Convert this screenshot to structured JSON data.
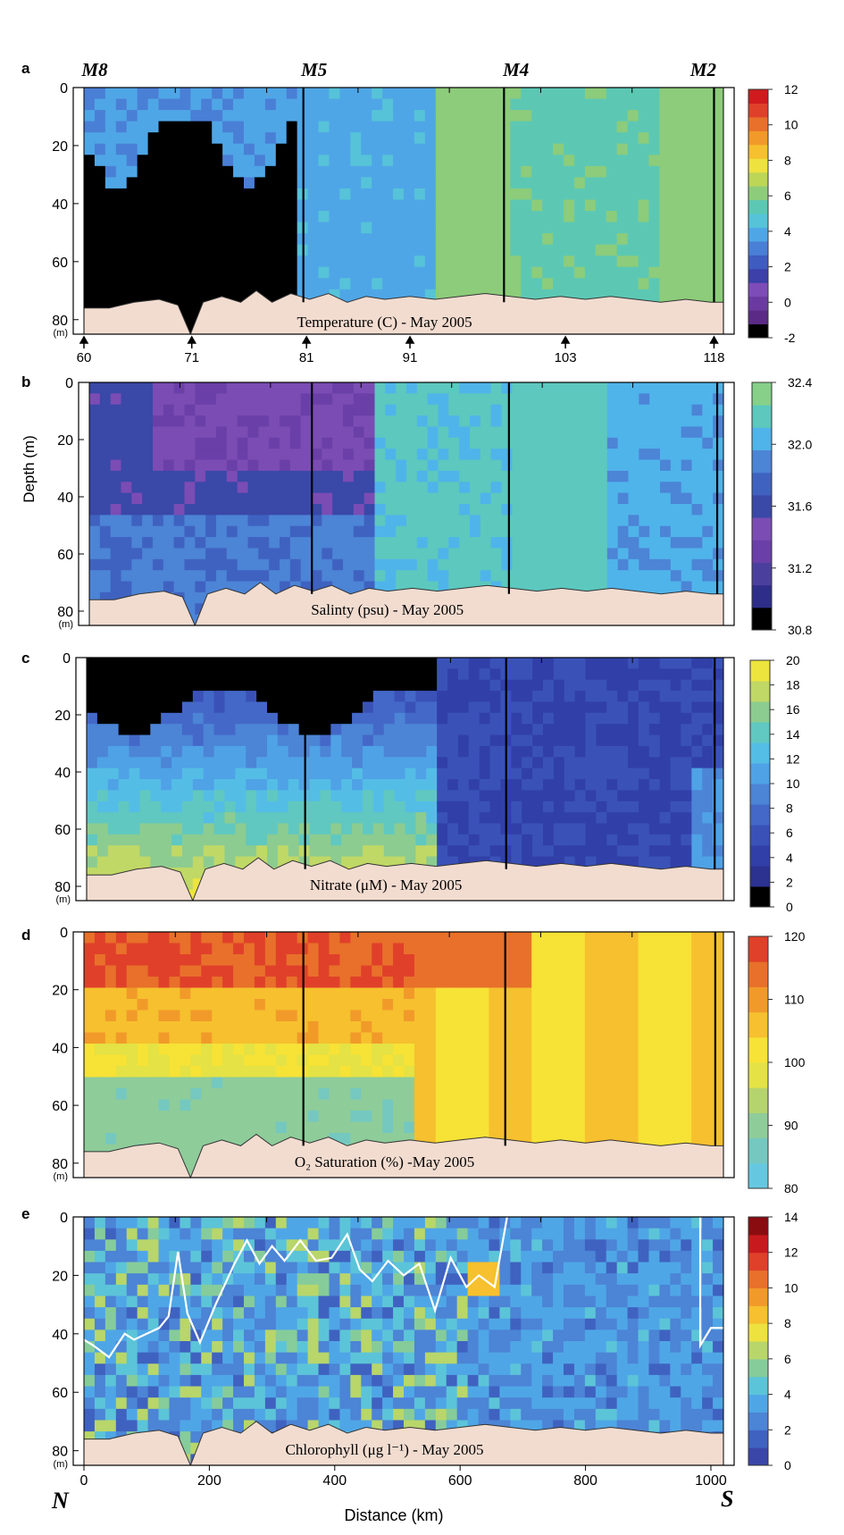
{
  "figure": {
    "y_axis_title": "Depth (m)",
    "x_axis_title": "Distance (km)",
    "north_label": "N",
    "south_label": "S",
    "depth_unit": "(m)",
    "station_labels": [
      "M8",
      "M5",
      "M4",
      "M2"
    ],
    "station_numbers": [
      "60",
      "71",
      "81",
      "91",
      "103",
      "118"
    ]
  },
  "chart_data": [
    {
      "type": "heatmap",
      "panel": "a",
      "caption": "Temperature (C) - May 2005",
      "depth_ticks": [
        "0",
        "20",
        "40",
        "60",
        "80"
      ],
      "ylim": [
        85,
        0
      ],
      "colorbar": {
        "ticks": [
          "12",
          "10",
          "8",
          "6",
          "4",
          "2",
          "0",
          "-2"
        ],
        "values": [
          12,
          10,
          8,
          6,
          4,
          2,
          0,
          -2
        ],
        "colors": [
          "#000000",
          "#5a2a86",
          "#6a3aa0",
          "#7d4cb8",
          "#3c40a8",
          "#3f5cc0",
          "#4a7fd6",
          "#4fa6e6",
          "#56c3d8",
          "#5cc8b4",
          "#8ccc7a",
          "#bdd656",
          "#eee23e",
          "#f6c02e",
          "#f19a2a",
          "#e8702a",
          "#e0402a",
          "#d01a1e"
        ]
      }
    },
    {
      "type": "heatmap",
      "panel": "b",
      "caption": "Salinty (psu) - May 2005",
      "depth_ticks": [
        "0",
        "20",
        "40",
        "60",
        "80"
      ],
      "ylim": [
        85,
        0
      ],
      "colorbar": {
        "ticks": [
          "32.4",
          "32.0",
          "31.6",
          "31.2",
          "30.8"
        ],
        "values": [
          32.4,
          32.0,
          31.6,
          31.2,
          30.8
        ],
        "colors": [
          "#000000",
          "#2e2d8a",
          "#4b3f9e",
          "#6a3fa8",
          "#7b4cb4",
          "#3a48a8",
          "#3f62c0",
          "#4c84d6",
          "#4fb4ea",
          "#5cc8be",
          "#86d08a"
        ]
      }
    },
    {
      "type": "heatmap",
      "panel": "c",
      "caption": "Nitrate (μM) - May 2005",
      "depth_ticks": [
        "0",
        "20",
        "40",
        "60",
        "80"
      ],
      "ylim": [
        85,
        0
      ],
      "colorbar": {
        "ticks": [
          "20",
          "18",
          "16",
          "14",
          "12",
          "10",
          "8",
          "6",
          "4",
          "2",
          "0"
        ],
        "values": [
          20,
          18,
          16,
          14,
          12,
          10,
          8,
          6,
          4,
          2,
          0
        ],
        "colors": [
          "#000000",
          "#2c3290",
          "#3140a8",
          "#3a52b8",
          "#4468c8",
          "#4c84d6",
          "#4fa2e6",
          "#54bde6",
          "#60c8c0",
          "#8ccc90",
          "#c0d866",
          "#eee43e"
        ]
      }
    },
    {
      "type": "heatmap",
      "panel": "d",
      "caption": "O₂ Saturation (%) -May 2005",
      "depth_ticks": [
        "0",
        "20",
        "40",
        "60",
        "80"
      ],
      "ylim": [
        85,
        0
      ],
      "colorbar": {
        "ticks": [
          "120",
          "110",
          "100",
          "90",
          "80"
        ],
        "values": [
          120,
          110,
          100,
          90,
          80
        ],
        "colors": [
          "#66c8e0",
          "#74c8c0",
          "#8ecc9a",
          "#b6d46e",
          "#e4e244",
          "#f7e236",
          "#f6c02e",
          "#f19a2a",
          "#e8702a",
          "#e0402a"
        ]
      }
    },
    {
      "type": "heatmap",
      "panel": "e",
      "caption": "Chlorophyll (μg l⁻¹) - May 2005",
      "depth_ticks": [
        "0",
        "20",
        "40",
        "60",
        "80"
      ],
      "distance_ticks": [
        "0",
        "200",
        "400",
        "600",
        "800",
        "1000"
      ],
      "xlim": [
        0,
        1020
      ],
      "ylim": [
        85,
        0
      ],
      "colorbar": {
        "ticks": [
          "14",
          "12",
          "10",
          "8",
          "6",
          "4",
          "2",
          "0"
        ],
        "values": [
          14,
          12,
          10,
          8,
          6,
          4,
          2,
          0
        ],
        "colors": [
          "#3a46a8",
          "#3f62c0",
          "#4c84d6",
          "#4fa6e6",
          "#5cc4d8",
          "#86cc9a",
          "#b8d66a",
          "#eee23e",
          "#f6c02e",
          "#f19a2a",
          "#e8702a",
          "#e0402a",
          "#c81a1e",
          "#8a0c10"
        ]
      },
      "mixed_layer_line": {
        "color": "#ffffff",
        "distance_km": [
          0,
          15,
          40,
          65,
          80,
          100,
          120,
          135,
          150,
          165,
          185,
          210,
          240,
          260,
          280,
          300,
          320,
          345,
          370,
          395,
          420,
          440,
          460,
          485,
          510,
          535,
          560,
          585,
          610,
          630,
          655,
          675
        ],
        "depth_m": [
          42,
          44,
          48,
          40,
          42,
          40,
          38,
          34,
          12,
          33,
          43,
          30,
          16,
          8,
          16,
          10,
          15,
          8,
          15,
          14,
          6,
          18,
          22,
          15,
          20,
          16,
          32,
          14,
          24,
          20,
          24,
          0
        ]
      }
    }
  ]
}
